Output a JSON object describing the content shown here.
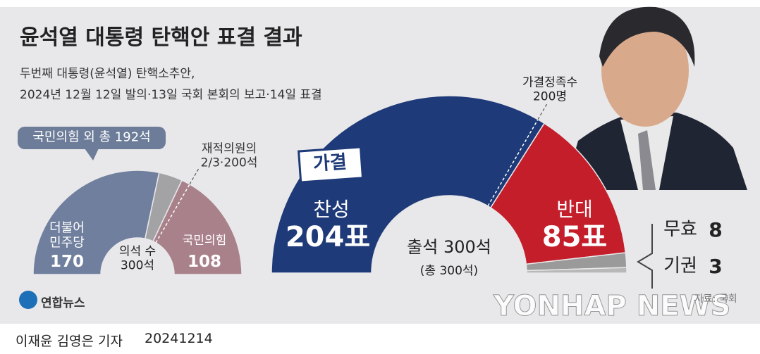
{
  "header": {
    "title": "윤석열 대통령 탄핵안 표결 결과",
    "subtitle": [
      "두번째 대통령(윤석열) 탄핵소추안,",
      "2024년 12월 12일 발의·13일 국회 본회의 보고·14일 표결"
    ]
  },
  "chart_data": [
    {
      "type": "pie",
      "categories": [
        "더불어\n민주당",
        null,
        "국민의힘"
      ],
      "values": [
        170,
        22,
        108
      ],
      "colors": [
        "#6f7f9d",
        "#a3a3a6",
        "#a9818b"
      ],
      "center_label": "의석 수\n300석",
      "annotation": "국민의힘 외 총 192석",
      "threshold": {
        "value": 200,
        "label": "재적의원의\n2/3·200석"
      }
    },
    {
      "type": "pie",
      "categories": [
        "찬성",
        "반대",
        "무효",
        "기권"
      ],
      "values": [
        204,
        85,
        8,
        3
      ],
      "value_labels": [
        "204표",
        "85표",
        "8",
        "3"
      ],
      "colors": [
        "#1e3a78",
        "#c41e2b",
        "#9a9a9a",
        "#b8b8b8"
      ],
      "center_label": [
        "출석 300석",
        "(총 300석)"
      ],
      "badge": "가결",
      "threshold": {
        "value": 200,
        "label": "가결정족수\n200명"
      }
    }
  ],
  "branding": {
    "logo": "연합뉴스",
    "watermark": "YONHAP NEWS",
    "source": "자료: 국회"
  },
  "footer": {
    "credit": "이재윤 김영은 기자",
    "date": "20241214"
  }
}
